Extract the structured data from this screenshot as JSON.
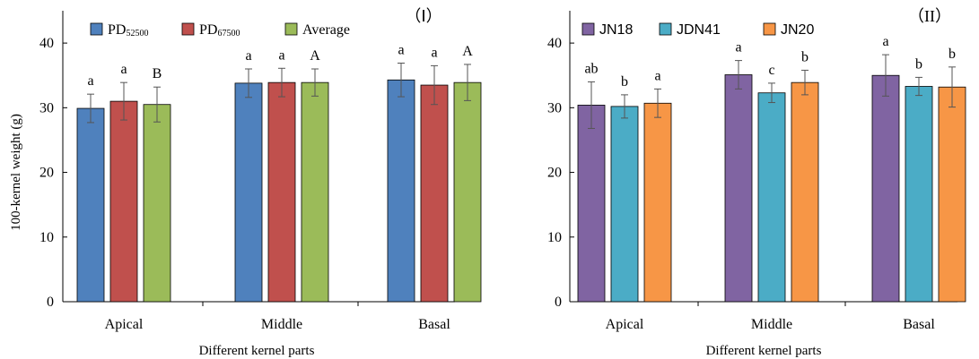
{
  "chart_data": [
    {
      "type": "bar",
      "title": "（Ⅰ）",
      "xlabel": "Different kernel parts",
      "ylabel": "100-kernel weight (g)",
      "ylim": [
        0,
        45
      ],
      "yticks": [
        "0",
        "10",
        "20",
        "30",
        "40"
      ],
      "categories": [
        "Apical",
        "Middle",
        "Basal"
      ],
      "legend_position": "top-left",
      "series": [
        {
          "name": "PD",
          "name_sub": "52500",
          "color": "#4f81bd",
          "values": [
            29.9,
            33.8,
            34.3
          ],
          "errors": [
            2.2,
            2.2,
            2.6
          ],
          "labels": [
            "a",
            "a",
            "a"
          ]
        },
        {
          "name": "PD",
          "name_sub": "67500",
          "color": "#c0504d",
          "values": [
            31.0,
            33.9,
            33.5
          ],
          "errors": [
            2.9,
            2.2,
            3.0
          ],
          "labels": [
            "a",
            "a",
            "a"
          ]
        },
        {
          "name": "Average",
          "name_sub": "",
          "color": "#9bbb59",
          "values": [
            30.5,
            33.9,
            33.9
          ],
          "errors": [
            2.7,
            2.1,
            2.8
          ],
          "labels": [
            "B",
            "A",
            "A"
          ]
        }
      ]
    },
    {
      "type": "bar",
      "title": "（II）",
      "xlabel": "Different kernel parts",
      "ylabel": "",
      "ylim": [
        0,
        45
      ],
      "yticks": [
        "0",
        "10",
        "20",
        "30",
        "40"
      ],
      "categories": [
        "Apical",
        "Middle",
        "Basal"
      ],
      "legend_position": "top-left",
      "series": [
        {
          "name": "JN18",
          "name_sub": "",
          "color": "#8064a2",
          "values": [
            30.4,
            35.1,
            35.0
          ],
          "errors": [
            3.6,
            2.2,
            3.2
          ],
          "labels": [
            "ab",
            "a",
            "a"
          ]
        },
        {
          "name": "JDN41",
          "name_sub": "",
          "color": "#4bacc6",
          "values": [
            30.2,
            32.3,
            33.3
          ],
          "errors": [
            1.8,
            1.5,
            1.4
          ],
          "labels": [
            "b",
            "c",
            "b"
          ]
        },
        {
          "name": "JN20",
          "name_sub": "",
          "color": "#f79646",
          "values": [
            30.7,
            33.9,
            33.2
          ],
          "errors": [
            2.2,
            1.9,
            3.1
          ],
          "labels": [
            "a",
            "b",
            "b"
          ]
        }
      ]
    }
  ]
}
